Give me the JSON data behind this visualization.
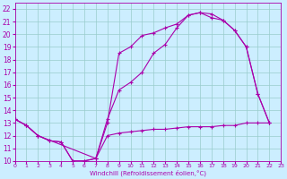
{
  "xlabel": "Windchill (Refroidissement éolien,°C)",
  "bg_color": "#cceeff",
  "line_color": "#aa00aa",
  "grid_color": "#99cccc",
  "xlim": [
    0,
    23
  ],
  "ylim": [
    10,
    22.5
  ],
  "yticks": [
    10,
    11,
    12,
    13,
    14,
    15,
    16,
    17,
    18,
    19,
    20,
    21,
    22
  ],
  "xticks": [
    0,
    1,
    2,
    3,
    4,
    5,
    6,
    7,
    8,
    9,
    10,
    11,
    12,
    13,
    14,
    15,
    16,
    17,
    18,
    19,
    20,
    21,
    22,
    23
  ],
  "curve1_x": [
    0,
    1,
    2,
    3,
    4,
    5,
    6,
    7,
    8,
    9,
    10,
    11,
    12,
    13,
    14,
    15,
    16,
    17,
    18,
    19,
    20,
    21,
    22
  ],
  "curve1_y": [
    13.3,
    12.8,
    12.0,
    11.6,
    11.5,
    10.0,
    10.0,
    10.2,
    13.0,
    18.5,
    19.0,
    19.9,
    20.1,
    20.5,
    20.8,
    21.5,
    21.7,
    21.6,
    21.1,
    20.3,
    19.0,
    15.3,
    13.0
  ],
  "curve2_x": [
    0,
    1,
    2,
    3,
    4,
    5,
    6,
    7,
    8,
    9,
    10,
    11,
    12,
    13,
    14,
    15,
    16,
    17,
    18,
    19,
    20,
    21,
    22
  ],
  "curve2_y": [
    13.3,
    12.8,
    12.0,
    11.6,
    11.5,
    10.0,
    10.0,
    10.2,
    12.0,
    12.2,
    12.3,
    12.4,
    12.5,
    12.5,
    12.6,
    12.7,
    12.7,
    12.7,
    12.8,
    12.8,
    13.0,
    13.0,
    13.0
  ],
  "curve3_x": [
    0,
    1,
    2,
    7,
    8,
    9,
    10,
    11,
    12,
    13,
    14,
    15,
    16,
    17,
    18,
    19,
    20,
    21,
    22
  ],
  "curve3_y": [
    13.3,
    12.8,
    12.0,
    10.2,
    13.3,
    15.6,
    16.2,
    17.0,
    18.5,
    19.2,
    20.5,
    21.5,
    21.7,
    21.3,
    21.1,
    20.3,
    19.0,
    15.3,
    13.0
  ]
}
